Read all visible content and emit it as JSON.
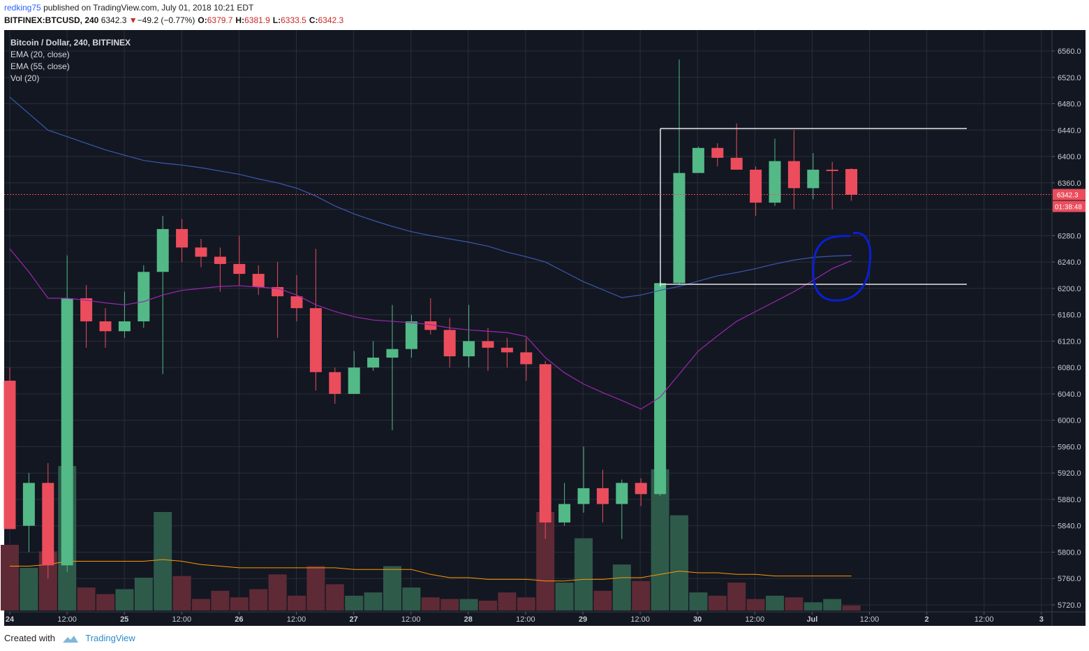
{
  "header": {
    "user": "redking75",
    "published": "published on TradingView.com, July 01, 2018 10:21 EDT",
    "symbol": "BITFINEX:BTCUSD, 240",
    "last": "6342.3",
    "down_arrow": "▼",
    "change": "−49.2 (−0.77%)",
    "o_label": "O:",
    "o": "6379.7",
    "h_label": "H:",
    "h": "6381.9",
    "l_label": "L:",
    "l": "6333.5",
    "c_label": "C:",
    "c": "6342.3"
  },
  "legend": {
    "title": "Bitcoin / Dollar, 240, BITFINEX",
    "ema20": "EMA (20, close)",
    "ema55": "EMA (55, close)",
    "vol": "Vol (20)"
  },
  "price_label": "6342.3",
  "countdown_label": "01:38:48",
  "footer": {
    "created": "Created with",
    "brand": "TradingView"
  },
  "colors": {
    "background": "#131722",
    "up": "#53b987",
    "down": "#eb4d5c",
    "ema20": "#9c27b0",
    "ema55": "#3a5ab0",
    "vol_ma": "#ff9800",
    "annotation": "#0a1fd6"
  },
  "chart_data": {
    "type": "candlestick",
    "title": "Bitcoin / Dollar, 240, BITFINEX",
    "ylim": [
      5710,
      6570
    ],
    "y_ticks": [
      "6560.0",
      "6520.0",
      "6480.0",
      "6440.0",
      "6400.0",
      "6360.0",
      "6320.0",
      "6280.0",
      "6240.0",
      "6200.0",
      "6160.0",
      "6120.0",
      "6080.0",
      "6040.0",
      "6000.0",
      "5960.0",
      "5920.0",
      "5880.0",
      "5840.0",
      "5800.0",
      "5760.0",
      "5720.0"
    ],
    "x_ticks": [
      "24",
      "12:00",
      "25",
      "12:00",
      "26",
      "12:00",
      "27",
      "12:00",
      "28",
      "12:00",
      "29",
      "12:00",
      "30",
      "12:00",
      "Jul",
      "12:00",
      "2",
      "12:00",
      "3"
    ],
    "grid": true,
    "candles": [
      {
        "o": 6060,
        "h": 6080,
        "l": 5840,
        "c": 5835
      },
      {
        "o": 5840,
        "h": 5920,
        "l": 5800,
        "c": 5905
      },
      {
        "o": 5905,
        "h": 5935,
        "l": 5760,
        "c": 5780
      },
      {
        "o": 5780,
        "h": 6250,
        "l": 5770,
        "c": 6185
      },
      {
        "o": 6185,
        "h": 6205,
        "l": 6110,
        "c": 6150
      },
      {
        "o": 6150,
        "h": 6170,
        "l": 6110,
        "c": 6135
      },
      {
        "o": 6135,
        "h": 6195,
        "l": 6125,
        "c": 6150
      },
      {
        "o": 6150,
        "h": 6235,
        "l": 6140,
        "c": 6225
      },
      {
        "o": 6225,
        "h": 6310,
        "l": 6070,
        "c": 6290
      },
      {
        "o": 6290,
        "h": 6305,
        "l": 6240,
        "c": 6262
      },
      {
        "o": 6262,
        "h": 6275,
        "l": 6232,
        "c": 6248
      },
      {
        "o": 6248,
        "h": 6262,
        "l": 6195,
        "c": 6237
      },
      {
        "o": 6237,
        "h": 6280,
        "l": 6205,
        "c": 6222
      },
      {
        "o": 6222,
        "h": 6235,
        "l": 6190,
        "c": 6202
      },
      {
        "o": 6202,
        "h": 6240,
        "l": 6125,
        "c": 6188
      },
      {
        "o": 6188,
        "h": 6220,
        "l": 6150,
        "c": 6170
      },
      {
        "o": 6170,
        "h": 6260,
        "l": 6045,
        "c": 6073
      },
      {
        "o": 6073,
        "h": 6080,
        "l": 6025,
        "c": 6040
      },
      {
        "o": 6040,
        "h": 6105,
        "l": 6040,
        "c": 6080
      },
      {
        "o": 6080,
        "h": 6120,
        "l": 6075,
        "c": 6095
      },
      {
        "o": 6095,
        "h": 6175,
        "l": 5985,
        "c": 6108
      },
      {
        "o": 6108,
        "h": 6160,
        "l": 6095,
        "c": 6150
      },
      {
        "o": 6150,
        "h": 6185,
        "l": 6130,
        "c": 6137
      },
      {
        "o": 6137,
        "h": 6155,
        "l": 6080,
        "c": 6097
      },
      {
        "o": 6097,
        "h": 6175,
        "l": 6080,
        "c": 6120
      },
      {
        "o": 6120,
        "h": 6140,
        "l": 6075,
        "c": 6110
      },
      {
        "o": 6110,
        "h": 6125,
        "l": 6080,
        "c": 6103
      },
      {
        "o": 6103,
        "h": 6125,
        "l": 6060,
        "c": 6085
      },
      {
        "o": 6085,
        "h": 6090,
        "l": 5820,
        "c": 5845
      },
      {
        "o": 5845,
        "h": 5905,
        "l": 5840,
        "c": 5873
      },
      {
        "o": 5873,
        "h": 5960,
        "l": 5860,
        "c": 5897
      },
      {
        "o": 5897,
        "h": 5925,
        "l": 5845,
        "c": 5873
      },
      {
        "o": 5873,
        "h": 5910,
        "l": 5820,
        "c": 5905
      },
      {
        "o": 5905,
        "h": 5912,
        "l": 5870,
        "c": 5888
      },
      {
        "o": 5888,
        "h": 6210,
        "l": 5885,
        "c": 6208
      },
      {
        "o": 6208,
        "h": 6547,
        "l": 6205,
        "c": 6375
      },
      {
        "o": 6375,
        "h": 6415,
        "l": 6375,
        "c": 6413
      },
      {
        "o": 6413,
        "h": 6420,
        "l": 6385,
        "c": 6398
      },
      {
        "o": 6398,
        "h": 6450,
        "l": 6380,
        "c": 6380
      },
      {
        "o": 6380,
        "h": 6385,
        "l": 6310,
        "c": 6330
      },
      {
        "o": 6330,
        "h": 6427,
        "l": 6325,
        "c": 6393
      },
      {
        "o": 6393,
        "h": 6440,
        "l": 6320,
        "c": 6352
      },
      {
        "o": 6352,
        "h": 6405,
        "l": 6335,
        "c": 6380
      },
      {
        "o": 6380,
        "h": 6392,
        "l": 6320,
        "c": 6378
      },
      {
        "o": 6381,
        "h": 6382,
        "l": 6333,
        "c": 6342
      }
    ],
    "volume": [
      {
        "v": 40,
        "up": false
      },
      {
        "v": 26,
        "up": true
      },
      {
        "v": 36,
        "up": false
      },
      {
        "v": 88,
        "up": true
      },
      {
        "v": 14,
        "up": false
      },
      {
        "v": 10,
        "up": false
      },
      {
        "v": 13,
        "up": true
      },
      {
        "v": 20,
        "up": true
      },
      {
        "v": 60,
        "up": true
      },
      {
        "v": 21,
        "up": false
      },
      {
        "v": 7,
        "up": false
      },
      {
        "v": 12,
        "up": false
      },
      {
        "v": 8,
        "up": false
      },
      {
        "v": 13,
        "up": false
      },
      {
        "v": 22,
        "up": false
      },
      {
        "v": 9,
        "up": false
      },
      {
        "v": 27,
        "up": false
      },
      {
        "v": 16,
        "up": false
      },
      {
        "v": 9,
        "up": true
      },
      {
        "v": 11,
        "up": true
      },
      {
        "v": 27,
        "up": true
      },
      {
        "v": 14,
        "up": true
      },
      {
        "v": 8,
        "up": false
      },
      {
        "v": 7,
        "up": false
      },
      {
        "v": 7,
        "up": true
      },
      {
        "v": 6,
        "up": false
      },
      {
        "v": 11,
        "up": false
      },
      {
        "v": 8,
        "up": false
      },
      {
        "v": 60,
        "up": false
      },
      {
        "v": 17,
        "up": true
      },
      {
        "v": 44,
        "up": true
      },
      {
        "v": 12,
        "up": false
      },
      {
        "v": 28,
        "up": true
      },
      {
        "v": 18,
        "up": false
      },
      {
        "v": 86,
        "up": true
      },
      {
        "v": 58,
        "up": true
      },
      {
        "v": 11,
        "up": true
      },
      {
        "v": 9,
        "up": false
      },
      {
        "v": 17,
        "up": false
      },
      {
        "v": 7,
        "up": false
      },
      {
        "v": 9,
        "up": true
      },
      {
        "v": 8,
        "up": false
      },
      {
        "v": 5,
        "up": true
      },
      {
        "v": 7,
        "up": true
      },
      {
        "v": 3,
        "up": false
      }
    ],
    "vol_ma": [
      27,
      27,
      28,
      30,
      30,
      30,
      30,
      30,
      31,
      30,
      28,
      27,
      26,
      26,
      26,
      26,
      26,
      26,
      25,
      25,
      25,
      25,
      22,
      20,
      20,
      19,
      19,
      19,
      18,
      18,
      19,
      19,
      20,
      20,
      22,
      24,
      23,
      23,
      22,
      22,
      21,
      21,
      21,
      21,
      21
    ],
    "ema20": [
      6260,
      6225,
      6185,
      6185,
      6182,
      6178,
      6175,
      6180,
      6190,
      6197,
      6200,
      6203,
      6204,
      6202,
      6200,
      6190,
      6175,
      6165,
      6157,
      6152,
      6150,
      6148,
      6145,
      6140,
      6137,
      6135,
      6133,
      6127,
      6095,
      6072,
      6055,
      6042,
      6030,
      6017,
      6035,
      6070,
      6105,
      6128,
      6150,
      6165,
      6180,
      6195,
      6212,
      6230,
      6242
    ],
    "ema55": [
      6490,
      6465,
      6440,
      6430,
      6420,
      6410,
      6402,
      6394,
      6390,
      6387,
      6383,
      6378,
      6373,
      6366,
      6360,
      6352,
      6340,
      6325,
      6313,
      6303,
      6294,
      6286,
      6280,
      6275,
      6270,
      6264,
      6255,
      6248,
      6240,
      6225,
      6210,
      6198,
      6186,
      6190,
      6197,
      6203,
      6211,
      6219,
      6224,
      6230,
      6237,
      6243,
      6247,
      6249,
      6250
    ]
  }
}
